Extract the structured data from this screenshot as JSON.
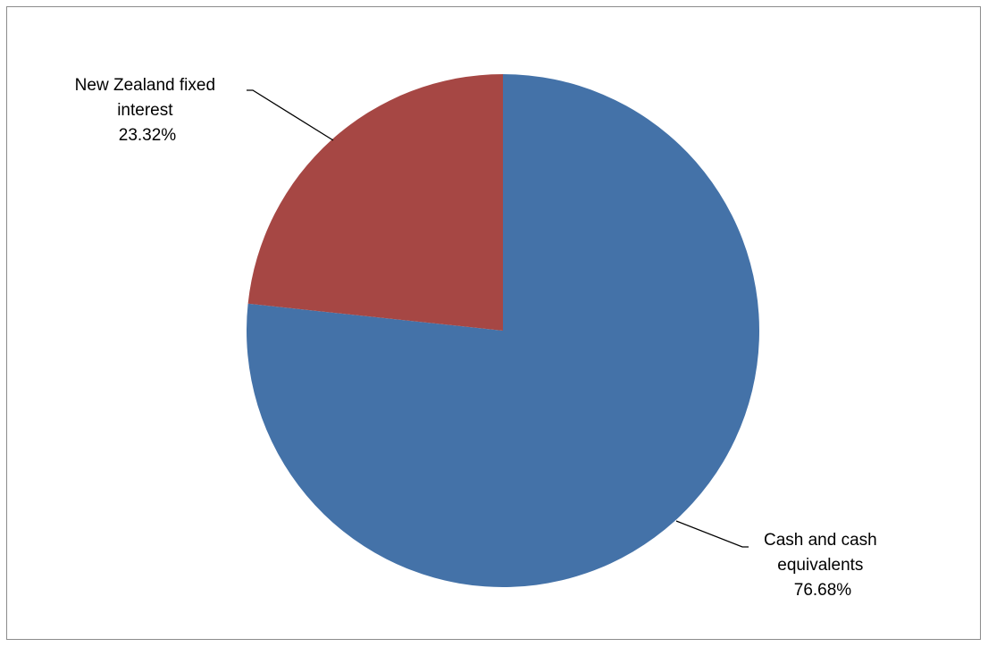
{
  "chart_data": {
    "type": "pie",
    "title": "",
    "start_angle_deg": 0,
    "direction": "clockwise",
    "legend": "none",
    "slices": [
      {
        "label": [
          "Cash and cash",
          "equivalents"
        ],
        "value": 76.68,
        "display": "76.68%",
        "color": "#4472A8"
      },
      {
        "label": [
          "New Zealand fixed",
          "interest"
        ],
        "value": 23.32,
        "display": "23.32%",
        "color": "#A64744"
      }
    ]
  }
}
